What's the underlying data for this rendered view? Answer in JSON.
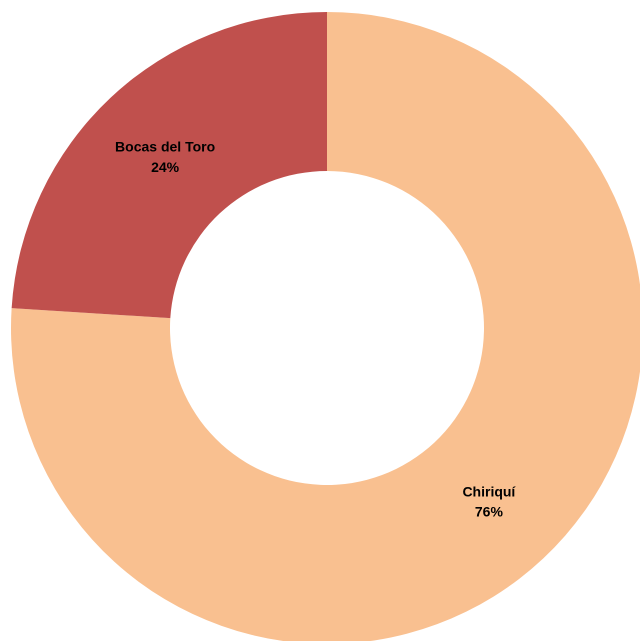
{
  "chart_data": {
    "type": "pie",
    "variant": "donut",
    "title": "",
    "slices": [
      {
        "label": "Chiriquí",
        "value": 76,
        "display": "76%",
        "color": "#F9C090"
      },
      {
        "label": "Bocas del Toro",
        "value": 24,
        "display": "24%",
        "color": "#C0504D"
      }
    ],
    "start_angle_deg": 0,
    "direction": "clockwise",
    "legend": "none"
  }
}
